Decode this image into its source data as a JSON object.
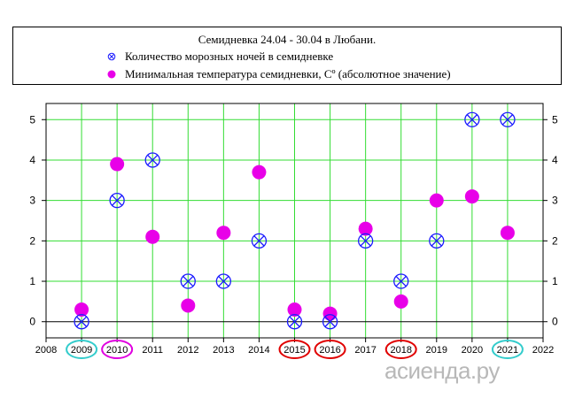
{
  "chart_data": {
    "type": "scatter",
    "title": "Семидневка 24.04 - 30.04 в Любани.",
    "xlim": [
      2008,
      2022
    ],
    "ylim": [
      -0.4,
      5.4
    ],
    "xticks": [
      2008,
      2009,
      2010,
      2011,
      2012,
      2013,
      2014,
      2015,
      2016,
      2017,
      2018,
      2019,
      2020,
      2021,
      2022
    ],
    "yticks": [
      0,
      1,
      2,
      3,
      4,
      5
    ],
    "grid": true,
    "legend_position": "top",
    "series": [
      {
        "name": "Количество морозных ночей в семидневке",
        "marker": "x-circle",
        "color": "#1a1aff",
        "points": [
          {
            "x": 2009,
            "y": 0
          },
          {
            "x": 2010,
            "y": 3
          },
          {
            "x": 2011,
            "y": 4
          },
          {
            "x": 2012,
            "y": 1
          },
          {
            "x": 2013,
            "y": 1
          },
          {
            "x": 2014,
            "y": 2
          },
          {
            "x": 2015,
            "y": 0
          },
          {
            "x": 2016,
            "y": 0
          },
          {
            "x": 2017,
            "y": 2
          },
          {
            "x": 2018,
            "y": 1
          },
          {
            "x": 2019,
            "y": 2
          },
          {
            "x": 2020,
            "y": 5
          },
          {
            "x": 2021,
            "y": 5
          }
        ]
      },
      {
        "name": "Минимальная температура семидневки, Сº (абсолютное значение)",
        "marker": "filled-circle",
        "color": "#e800e8",
        "points": [
          {
            "x": 2009,
            "y": 0.3
          },
          {
            "x": 2010,
            "y": 3.9
          },
          {
            "x": 2011,
            "y": 2.1
          },
          {
            "x": 2012,
            "y": 0.4
          },
          {
            "x": 2013,
            "y": 2.2
          },
          {
            "x": 2014,
            "y": 3.7
          },
          {
            "x": 2015,
            "y": 0.3
          },
          {
            "x": 2016,
            "y": 0.2
          },
          {
            "x": 2017,
            "y": 2.3
          },
          {
            "x": 2018,
            "y": 0.5
          },
          {
            "x": 2019,
            "y": 3.0
          },
          {
            "x": 2020,
            "y": 3.1
          },
          {
            "x": 2021,
            "y": 2.2
          }
        ]
      }
    ],
    "highlighted_years": [
      {
        "year": 2009,
        "color": "#33cccc"
      },
      {
        "year": 2010,
        "color": "#e000e0"
      },
      {
        "year": 2015,
        "color": "#e00000"
      },
      {
        "year": 2016,
        "color": "#e00000"
      },
      {
        "year": 2018,
        "color": "#e00000"
      },
      {
        "year": 2021,
        "color": "#33cccc"
      }
    ]
  },
  "legend": {
    "title": "Семидневка 24.04 - 30.04 в Любани.",
    "frost_label": "Количество морозных ночей в семидневке",
    "temp_label": "Минимальная температура семидневки, Сº (абсолютное значение)"
  },
  "watermark": "асиенда.ру",
  "colors": {
    "grid": "#33dd33",
    "frost_marker": "#1a1aff",
    "temp_marker": "#e800e8"
  }
}
